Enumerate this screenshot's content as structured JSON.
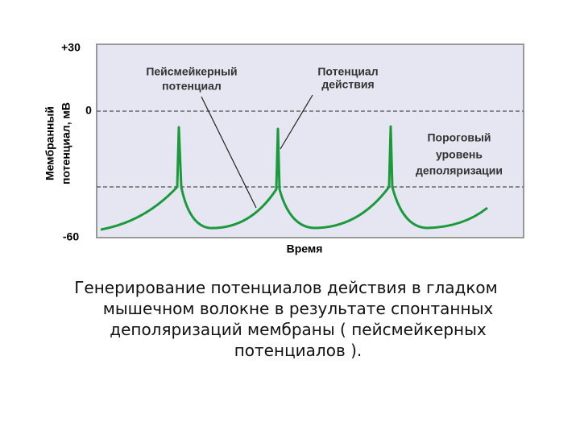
{
  "diagram": {
    "y_axis": {
      "title_line1": "Мембранный",
      "title_line2": "потенциал, мВ",
      "ticks": [
        "+30",
        "0",
        "-60"
      ]
    },
    "x_axis": {
      "title": "Время"
    },
    "annotations": {
      "pacemaker": [
        "Пейсмейкерный",
        "потенциал"
      ],
      "action": [
        "Потенциал",
        "действия"
      ],
      "threshold": [
        "Пороговый",
        "уровень",
        "деполяризации"
      ]
    }
  },
  "caption": "Генерирование потенциалов действия в гладком мышечном волокне в результате спонтанных деполяризаций мембраны ( пейсмейкерных потенциалов )."
}
